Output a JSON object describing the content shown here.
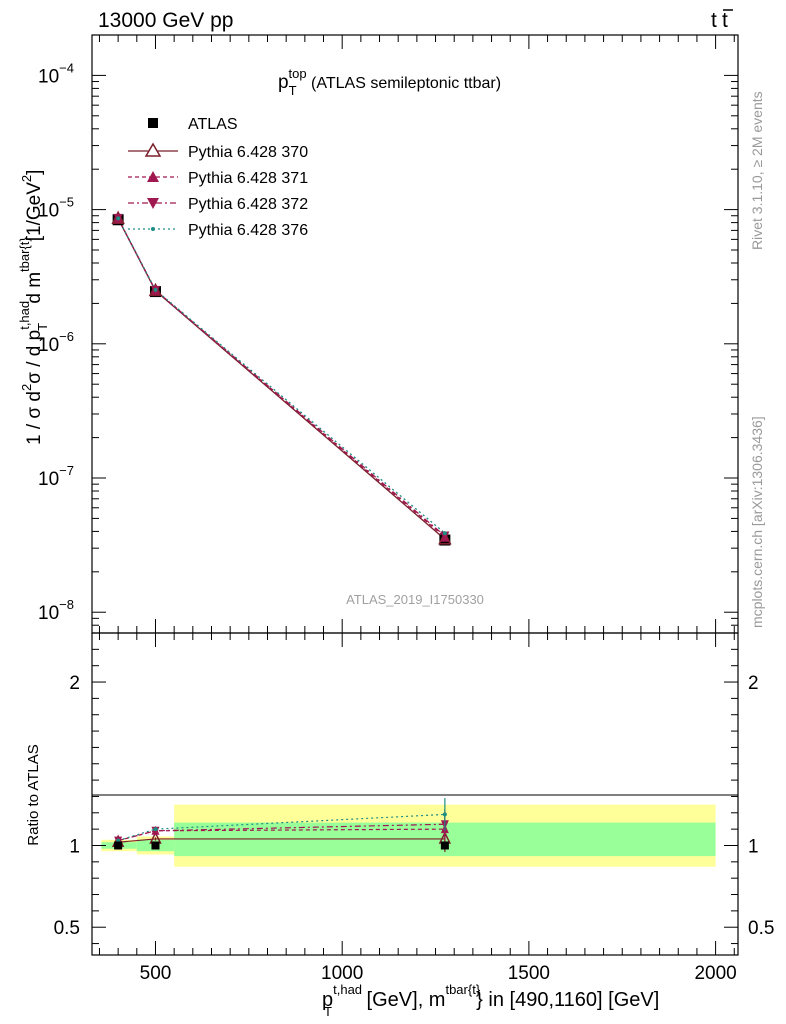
{
  "header": {
    "left": "13000 GeV pp",
    "right_main": "t",
    "right_bar": "t"
  },
  "side_labels": {
    "rivet": "Rivet 3.1.10, ≥ 2M events",
    "mcplots": "mcplots.cern.ch [arXiv:1306.3436]"
  },
  "watermark": "ATLAS_2019_I1750330",
  "chart_data": [
    {
      "type": "line",
      "title": {
        "main": "p",
        "sub": "T",
        "sup": "top",
        "rest": " (ATLAS semileptonic ttbar)"
      },
      "ylabel": {
        "p1": "1 / σ d",
        "sup1": "2",
        "p2": "σ / d p",
        "sup2": "t,had",
        "sub2": "T",
        "p3": " d m",
        "sup3": "tbar{t}",
        "p4": "[1/GeV",
        "sup4": "2",
        "p5": "]"
      },
      "yscale": "log",
      "ylim": [
        7e-09,
        0.0002
      ],
      "xlim": [
        330,
        2060
      ],
      "ytick_labels": [
        {
          "v": 1e-08,
          "base": "10",
          "exp": "−8"
        },
        {
          "v": 1e-07,
          "base": "10",
          "exp": "−7"
        },
        {
          "v": 1e-06,
          "base": "10",
          "exp": "−6"
        },
        {
          "v": 1e-05,
          "base": "10",
          "exp": "−5"
        },
        {
          "v": 0.0001,
          "base": "10",
          "exp": "−4"
        }
      ],
      "x": [
        400,
        500,
        1275
      ],
      "reference": {
        "name": "ATLAS",
        "marker": "square",
        "color": "#000000",
        "values": [
          8.4e-06,
          2.45e-06,
          3.45e-08
        ]
      },
      "series": [
        {
          "name": "Pythia 6.428 370",
          "marker": "triangle-open",
          "dash": "",
          "color": "#7a1f2b",
          "values": [
            8.55e-06,
            2.48e-06,
            3.5e-08
          ]
        },
        {
          "name": "Pythia 6.428 371",
          "marker": "triangle",
          "dash": "4,3",
          "color": "#a0184f",
          "values": [
            8.6e-06,
            2.5e-06,
            3.62e-08
          ]
        },
        {
          "name": "Pythia 6.428 372",
          "marker": "triangle-down",
          "dash": "6,3,2,3",
          "color": "#a01850",
          "values": [
            8.6e-06,
            2.5e-06,
            3.7e-08
          ]
        },
        {
          "name": "Pythia 6.428 376",
          "marker": "dot",
          "dash": "2,3",
          "color": "#1e8c82",
          "values": [
            8.6e-06,
            2.52e-06,
            3.88e-08
          ]
        }
      ],
      "legend_position": "upper-left"
    },
    {
      "type": "line",
      "ylabel": "Ratio to ATLAS",
      "xlabel": {
        "p1": "p",
        "sup1": "t,had",
        "sub1": "T",
        "p2": " [GeV], m",
        "sup2": "tbar{t}",
        "p3": "} in [490,1160] [GeV]"
      },
      "xlim": [
        330,
        2060
      ],
      "ylim": [
        0.33,
        2.3
      ],
      "xticks": [
        500,
        1000,
        1500,
        2000
      ],
      "xtick_labels": [
        "500",
        "1000",
        "1500",
        "2000"
      ],
      "yticks": [
        0.5,
        1,
        2
      ],
      "ytick_labels": [
        "0.5",
        "1",
        "2"
      ],
      "x": [
        400,
        500,
        1275
      ],
      "uncertainty_bands": [
        {
          "x0": 355,
          "x1": 450,
          "stat_lo": 0.98,
          "stat_hi": 1.02,
          "tot_lo": 0.965,
          "tot_hi": 1.035
        },
        {
          "x0": 450,
          "x1": 550,
          "stat_lo": 0.965,
          "stat_hi": 1.035,
          "tot_lo": 0.945,
          "tot_hi": 1.055
        },
        {
          "x0": 550,
          "x1": 2000,
          "stat_lo": 0.935,
          "stat_hi": 1.14,
          "tot_lo": 0.87,
          "tot_hi": 1.25
        }
      ],
      "band_colors": {
        "stat": "#99ff99",
        "total": "#ffff99"
      },
      "series": [
        {
          "name": "Pythia 6.428 370",
          "values": [
            1.02,
            1.04,
            1.04
          ],
          "err": [
            0.01,
            0.01,
            0.08
          ]
        },
        {
          "name": "Pythia 6.428 371",
          "values": [
            1.03,
            1.09,
            1.1
          ],
          "err": [
            0.01,
            0.01,
            0.09
          ]
        },
        {
          "name": "Pythia 6.428 372",
          "values": [
            1.03,
            1.09,
            1.13
          ],
          "err": [
            0.01,
            0.01,
            0.09
          ]
        },
        {
          "name": "Pythia 6.428 376",
          "values": [
            1.03,
            1.1,
            1.19
          ],
          "err": [
            0.01,
            0.01,
            0.1
          ]
        }
      ]
    }
  ]
}
